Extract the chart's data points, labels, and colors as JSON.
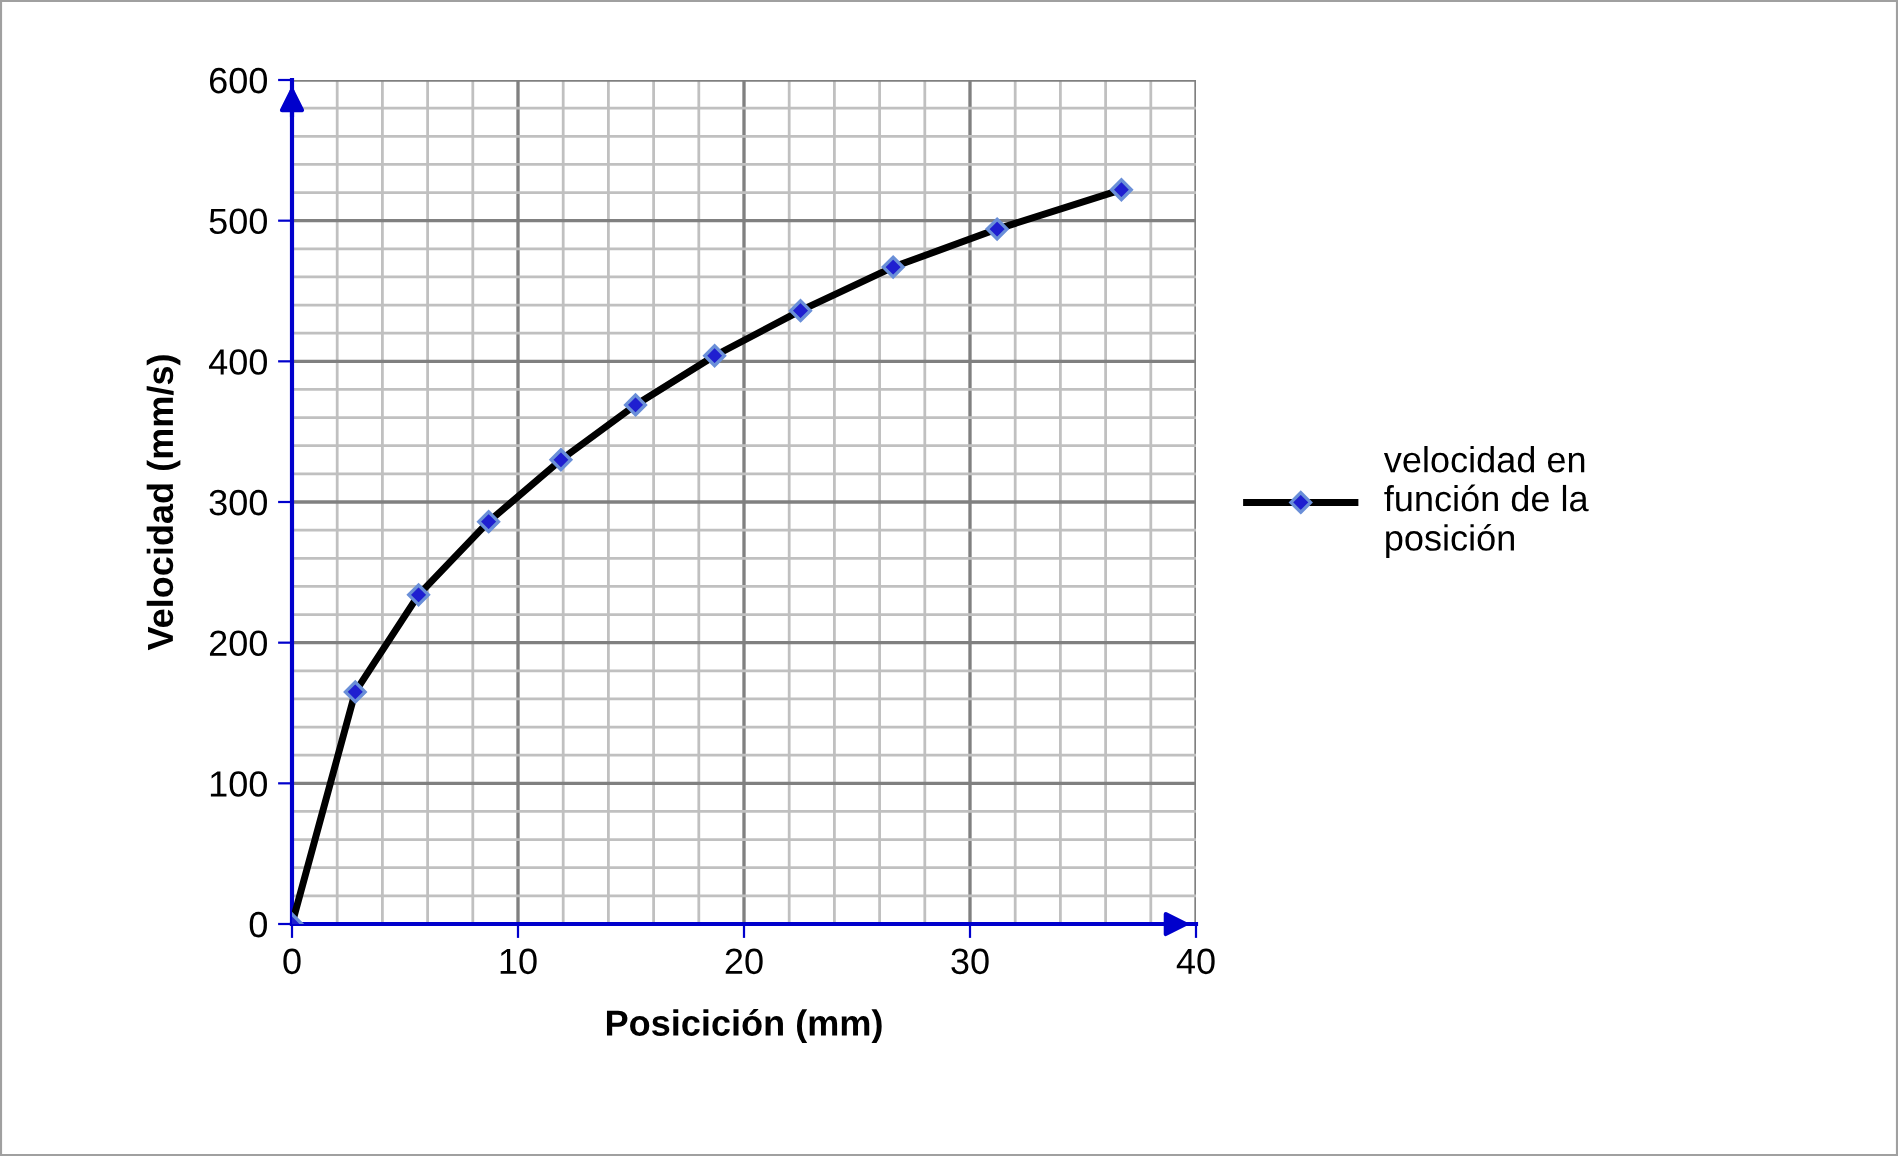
{
  "chart_data": {
    "type": "line",
    "xlabel": "Posicición (mm)",
    "ylabel": "Velocidad (mm/s)",
    "x": [
      0,
      2.8,
      5.6,
      8.7,
      11.9,
      15.2,
      18.7,
      22.5,
      26.6,
      31.2,
      36.7
    ],
    "series": [
      {
        "name": "velocidad en función de la posición",
        "color": "#000000",
        "values": [
          0,
          165,
          234,
          286,
          330,
          369,
          404,
          436,
          467,
          494,
          522
        ]
      }
    ],
    "xlim": [
      0,
      40
    ],
    "xticks": [
      0,
      10,
      20,
      30,
      40
    ],
    "ylim": [
      0,
      600
    ],
    "yticks": [
      0,
      100,
      200,
      300,
      400,
      500,
      600
    ],
    "grid": true,
    "legend": "right",
    "marker": "diamond",
    "line_style": "solid"
  }
}
